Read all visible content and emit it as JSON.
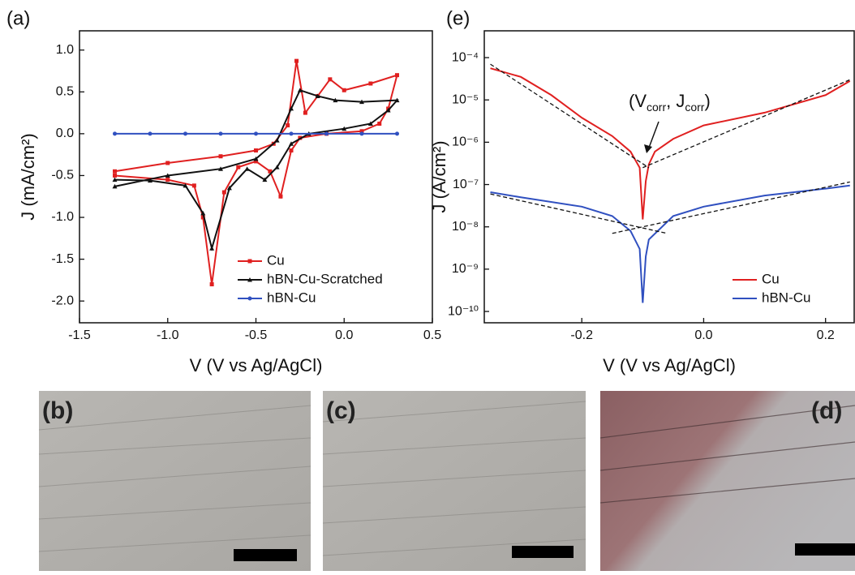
{
  "chart_data": [
    {
      "type": "line",
      "panel_label": "(a)",
      "x_label": "V (V vs Ag/AgCl)",
      "y_label": "J (mA/cm²)",
      "xlim": [
        -1.5,
        0.5
      ],
      "ylim": [
        -2.26,
        1.23
      ],
      "xticks": [
        -1.5,
        {
          "value": -1,
          "label": "-1.0"
        },
        -0.5,
        {
          "value": 0,
          "label": "0.0"
        },
        0.5
      ],
      "yticks": [
        {
          "value": 1,
          "label": "1.0"
        },
        0.5,
        {
          "value": 0,
          "label": "0.0"
        },
        -0.5,
        {
          "value": -1,
          "label": "-1.0"
        },
        -1.5,
        {
          "value": -2,
          "label": "-2.0"
        }
      ],
      "legend": "lower right",
      "series": [
        {
          "name": "Cu",
          "color": "#e02020",
          "marker": "square",
          "x": [
            -1.3,
            -1.0,
            -0.7,
            -0.5,
            -0.4,
            -0.32,
            -0.27,
            -0.22,
            -0.15,
            -0.08,
            0.0,
            0.15,
            0.3,
            0.25,
            0.2,
            0.1,
            -0.1,
            -0.25,
            -0.3,
            -0.36,
            -0.42,
            -0.5,
            -0.6,
            -0.68,
            -0.75,
            -0.8,
            -0.85,
            -1.0,
            -1.3
          ],
          "values": [
            -0.45,
            -0.35,
            -0.27,
            -0.2,
            -0.12,
            0.1,
            0.87,
            0.25,
            0.45,
            0.65,
            0.52,
            0.6,
            0.7,
            0.3,
            0.12,
            0.03,
            0.0,
            -0.05,
            -0.2,
            -0.75,
            -0.45,
            -0.33,
            -0.4,
            -0.7,
            -1.8,
            -1.0,
            -0.62,
            -0.55,
            -0.5
          ]
        },
        {
          "name": "hBN-Cu-Scratched",
          "color": "#111111",
          "marker": "triangle",
          "x": [
            -1.3,
            -1.0,
            -0.7,
            -0.5,
            -0.38,
            -0.3,
            -0.25,
            -0.15,
            -0.05,
            0.1,
            0.3,
            0.25,
            0.15,
            0.0,
            -0.2,
            -0.3,
            -0.38,
            -0.45,
            -0.55,
            -0.65,
            -0.75,
            -0.8,
            -0.9,
            -1.1,
            -1.3
          ],
          "values": [
            -0.63,
            -0.5,
            -0.42,
            -0.3,
            -0.08,
            0.3,
            0.52,
            0.45,
            0.4,
            0.38,
            0.4,
            0.28,
            0.12,
            0.06,
            0.0,
            -0.12,
            -0.4,
            -0.55,
            -0.42,
            -0.65,
            -1.37,
            -0.95,
            -0.62,
            -0.56,
            -0.55
          ]
        },
        {
          "name": "hBN-Cu",
          "color": "#3050c0",
          "marker": "circle",
          "x": [
            -1.3,
            -1.1,
            -0.9,
            -0.7,
            -0.5,
            -0.3,
            -0.1,
            0.1,
            0.3
          ],
          "values": [
            0,
            0,
            0,
            0,
            0,
            0,
            0,
            0,
            0
          ]
        }
      ]
    },
    {
      "type": "line",
      "panel_label": "(e)",
      "log_y": true,
      "x_label": "V (V vs Ag/AgCl)",
      "y_label": "J (A/cm²)",
      "xlim": [
        -0.36,
        0.247
      ],
      "ylim": [
        5.4e-11,
        0.00043
      ],
      "xticks": [
        -0.2,
        {
          "value": 0,
          "label": "0.0"
        },
        0.2
      ],
      "yticks": [
        {
          "value": 1e-10,
          "label": "10⁻¹⁰"
        },
        {
          "value": 1e-09,
          "label": "10⁻⁹"
        },
        {
          "value": 1e-08,
          "label": "10⁻⁸"
        },
        {
          "value": 1e-07,
          "label": "10⁻⁷"
        },
        {
          "value": 1e-06,
          "label": "10⁻⁶"
        },
        {
          "value": 1e-05,
          "label": "10⁻⁵"
        },
        {
          "value": 0.0001,
          "label": "10⁻⁴"
        }
      ],
      "legend": "lower right",
      "annotation": {
        "parts": [
          "(V",
          "corr",
          ", J",
          "corr",
          ")"
        ]
      },
      "series": [
        {
          "name": "Cu",
          "color": "#e02020",
          "x": [
            -0.35,
            -0.3,
            -0.25,
            -0.2,
            -0.15,
            -0.12,
            -0.105,
            -0.1,
            -0.095,
            -0.09,
            -0.08,
            -0.05,
            0.0,
            0.1,
            0.2,
            0.24
          ],
          "values": [
            5.6e-05,
            3.5e-05,
            1.3e-05,
            3.8e-06,
            1.4e-06,
            6e-07,
            2.5e-07,
            1.5e-08,
            1.2e-07,
            3e-07,
            6e-07,
            1.2e-06,
            2.5e-06,
            5e-06,
            1.3e-05,
            2.8e-05
          ]
        },
        {
          "name": "hBN-Cu",
          "color": "#3050c0",
          "x": [
            -0.35,
            -0.3,
            -0.2,
            -0.15,
            -0.12,
            -0.105,
            -0.1,
            -0.095,
            -0.09,
            -0.05,
            0.0,
            0.1,
            0.2,
            0.24
          ],
          "values": [
            6.6e-08,
            5e-08,
            3e-08,
            1.8e-08,
            8e-09,
            3e-09,
            1.6e-10,
            2e-09,
            5e-09,
            1.8e-08,
            3e-08,
            5.5e-08,
            8e-08,
            9.5e-08
          ]
        }
      ],
      "fit_lines": [
        {
          "color": "#111111",
          "x": [
            -0.35,
            -0.09
          ],
          "values": [
            7e-05,
            2.5e-07
          ]
        },
        {
          "color": "#111111",
          "x": [
            -0.1,
            0.24
          ],
          "values": [
            2.5e-07,
            3e-05
          ]
        },
        {
          "color": "#111111",
          "x": [
            -0.35,
            -0.06
          ],
          "values": [
            6e-08,
            7e-09
          ]
        },
        {
          "color": "#111111",
          "x": [
            -0.15,
            0.24
          ],
          "values": [
            7e-09,
            1.15e-07
          ]
        }
      ]
    }
  ],
  "images": [
    {
      "label": "(b)"
    },
    {
      "label": "(c)"
    },
    {
      "label": "(d)"
    }
  ]
}
